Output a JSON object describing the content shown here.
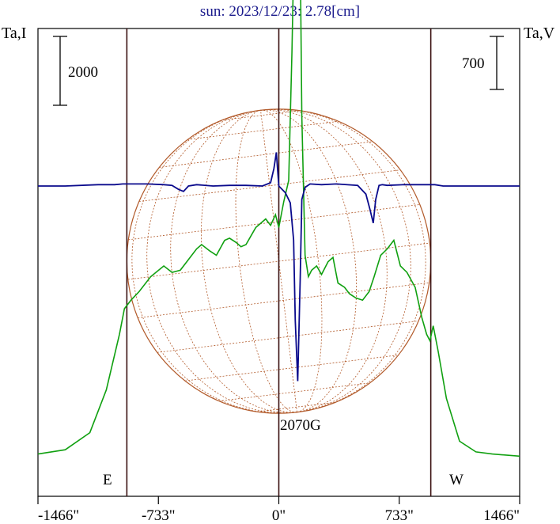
{
  "chart_data": {
    "type": "line",
    "title": "sun: 2023/12/23: 2.78[cm]",
    "left_axis_label": "Ta,I",
    "right_axis_label": "Ta,V",
    "left_scale_bar": "2000",
    "right_scale_bar": "700",
    "limb_labels": {
      "east": "E",
      "west": "W"
    },
    "field_annotation": "2070G",
    "x_ticks": [
      {
        "value": -1466,
        "label": "-1466\""
      },
      {
        "value": -733,
        "label": "-733\""
      },
      {
        "value": 0,
        "label": "0\""
      },
      {
        "value": 733,
        "label": "733\""
      },
      {
        "value": 1466,
        "label": "1466\""
      }
    ],
    "xlim": [
      -1466,
      1466
    ],
    "solar_limb_arcsec": [
      -925,
      925
    ],
    "grid": false,
    "colors": {
      "title": "#1a1a8c",
      "stokes_I": "#10a010",
      "stokes_V": "#0a0a8c",
      "disk": "#b25a2a",
      "limb_lines": "#3a1010",
      "axes": "#000000"
    },
    "series": [
      {
        "name": "I",
        "x": [
          -1466,
          -1300,
          -1150,
          -1050,
          -970,
          -940,
          -900,
          -850,
          -780,
          -700,
          -650,
          -600,
          -560,
          -500,
          -470,
          -420,
          -380,
          -330,
          -300,
          -260,
          -230,
          -200,
          -170,
          -140,
          -110,
          -80,
          -50,
          -20,
          0,
          30,
          60,
          80,
          100,
          120,
          140,
          160,
          180,
          200,
          230,
          260,
          300,
          330,
          360,
          400,
          430,
          470,
          510,
          550,
          580,
          620,
          660,
          700,
          740,
          780,
          830,
          870,
          900,
          920,
          940,
          970,
          1020,
          1100,
          1200,
          1300,
          1466
        ],
        "y": [
          0.02,
          0.04,
          0.12,
          0.32,
          0.58,
          0.7,
          0.74,
          0.78,
          0.85,
          0.9,
          0.87,
          0.88,
          0.92,
          0.98,
          1.0,
          0.97,
          0.95,
          1.02,
          1.03,
          1.01,
          0.99,
          1.0,
          1.04,
          1.08,
          1.1,
          1.12,
          1.09,
          1.14,
          1.08,
          1.2,
          1.3,
          1.9,
          2.7,
          3.2,
          1.6,
          0.95,
          0.85,
          0.88,
          0.9,
          0.86,
          0.92,
          0.94,
          0.82,
          0.8,
          0.77,
          0.75,
          0.74,
          0.78,
          0.85,
          0.95,
          0.98,
          1.02,
          0.9,
          0.87,
          0.8,
          0.66,
          0.58,
          0.55,
          0.62,
          0.5,
          0.28,
          0.08,
          0.03,
          0.02,
          0.01
        ]
      },
      {
        "name": "V",
        "x": [
          -1466,
          -1300,
          -1100,
          -1000,
          -950,
          -900,
          -800,
          -700,
          -650,
          -610,
          -580,
          -550,
          -500,
          -400,
          -300,
          -200,
          -100,
          -50,
          -30,
          -15,
          0,
          40,
          70,
          90,
          100,
          115,
          130,
          140,
          160,
          190,
          260,
          350,
          480,
          530,
          555,
          575,
          590,
          610,
          630,
          660,
          760,
          900,
          950,
          1000,
          1100,
          1200,
          1300,
          1466
        ],
        "y": [
          0.0,
          0.0,
          0.02,
          0.02,
          0.03,
          0.03,
          0.03,
          0.02,
          0.01,
          -0.05,
          -0.08,
          0.0,
          0.02,
          0.0,
          0.01,
          0.01,
          0.0,
          0.05,
          0.26,
          0.5,
          0.0,
          -0.1,
          -0.25,
          -0.8,
          -2.0,
          -2.9,
          -1.4,
          -0.2,
          -0.02,
          0.03,
          0.02,
          0.03,
          0.01,
          -0.12,
          -0.35,
          -0.55,
          -0.2,
          0.01,
          0.02,
          0.01,
          0.02,
          0.02,
          0.02,
          0.0,
          0.0,
          0.0,
          0.0,
          0.0
        ]
      }
    ]
  }
}
